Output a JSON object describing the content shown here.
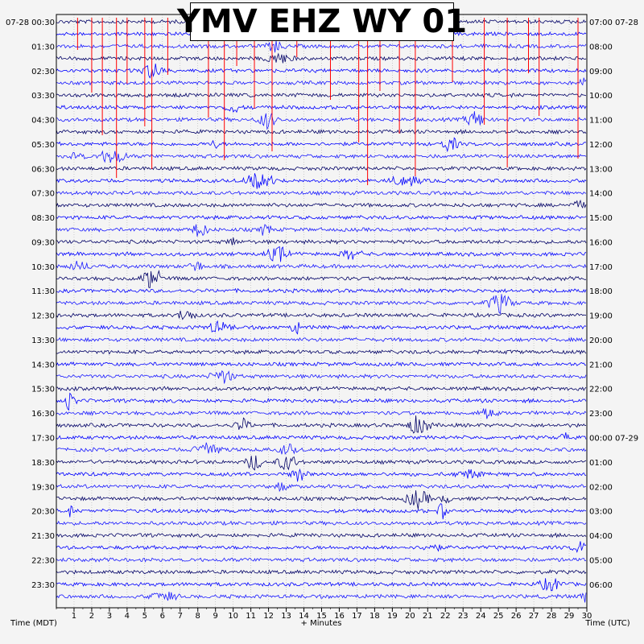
{
  "chart_data": {
    "type": "line",
    "title": "YMV EHZ WY 01",
    "xlabel": "+ Minutes",
    "left_axis_label": "Time (MDT)",
    "right_axis_label": "Time (UTC)",
    "left_date": "07-28",
    "right_date_top": "07-28",
    "right_date_change": "07-29",
    "x_ticks": [
      1,
      2,
      3,
      4,
      5,
      6,
      7,
      8,
      9,
      10,
      11,
      12,
      13,
      14,
      15,
      16,
      17,
      18,
      19,
      20,
      21,
      22,
      23,
      24,
      25,
      26,
      27,
      28,
      29,
      30
    ],
    "xlim": [
      0,
      30
    ],
    "left_times": [
      "00:30",
      "01:30",
      "02:30",
      "03:30",
      "04:30",
      "05:30",
      "06:30",
      "07:30",
      "08:30",
      "09:30",
      "10:30",
      "11:30",
      "12:30",
      "13:30",
      "14:30",
      "15:30",
      "16:30",
      "17:30",
      "18:30",
      "19:30",
      "20:30",
      "21:30",
      "22:30",
      "23:30"
    ],
    "right_times": [
      "07:00",
      "08:00",
      "09:00",
      "10:00",
      "11:00",
      "12:00",
      "13:00",
      "14:00",
      "15:00",
      "16:00",
      "17:00",
      "18:00",
      "19:00",
      "20:00",
      "21:00",
      "22:00",
      "23:00",
      "00:00",
      "01:00",
      "02:00",
      "03:00",
      "04:00",
      "05:00",
      "06:00"
    ],
    "traces_per_hour": 2,
    "trace_colors": [
      "#000066",
      "#0000ff",
      "#1a1aff"
    ],
    "clipping_color": "#ff0000",
    "grid": true
  }
}
